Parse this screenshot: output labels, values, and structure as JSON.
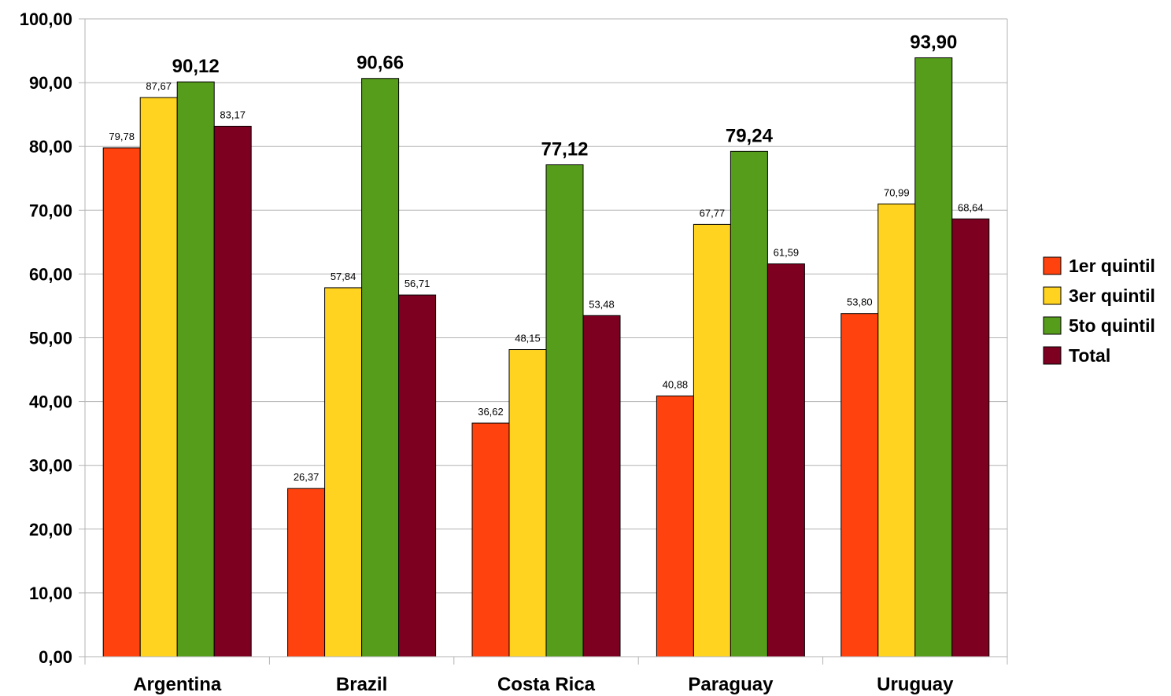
{
  "chart_data": {
    "type": "bar",
    "categories": [
      "Argentina",
      "Brazil",
      "Costa Rica",
      "Paraguay",
      "Uruguay"
    ],
    "series": [
      {
        "name": "1er quintil",
        "color": "#ff420e",
        "values": [
          79.78,
          26.37,
          36.62,
          40.88,
          53.8
        ],
        "labels": [
          "79,78",
          "26,37",
          "36,62",
          "40,88",
          "53,80"
        ],
        "label_style": "small"
      },
      {
        "name": "3er quintil",
        "color": "#ffd320",
        "values": [
          87.67,
          57.84,
          48.15,
          67.77,
          70.99
        ],
        "labels": [
          "87,67",
          "57,84",
          "48,15",
          "67,77",
          "70,99"
        ],
        "label_style": "small"
      },
      {
        "name": "5to quintil",
        "color": "#579d1c",
        "values": [
          90.12,
          90.66,
          77.12,
          79.24,
          93.9
        ],
        "labels": [
          "90,12",
          "90,66",
          "77,12",
          "79,24",
          "93,90"
        ],
        "label_style": "bold"
      },
      {
        "name": "Total",
        "color": "#7e0021",
        "values": [
          83.17,
          56.71,
          53.48,
          61.59,
          68.64
        ],
        "labels": [
          "83,17",
          "56,71",
          "53,48",
          "61,59",
          "68,64"
        ],
        "label_style": "small"
      }
    ],
    "yticks": [
      "0,00",
      "10,00",
      "20,00",
      "30,00",
      "40,00",
      "50,00",
      "60,00",
      "70,00",
      "80,00",
      "90,00",
      "100,00"
    ],
    "ylim": [
      0,
      100
    ],
    "grid": true,
    "legend": "right",
    "gridline_color": "#b3b3b3"
  }
}
